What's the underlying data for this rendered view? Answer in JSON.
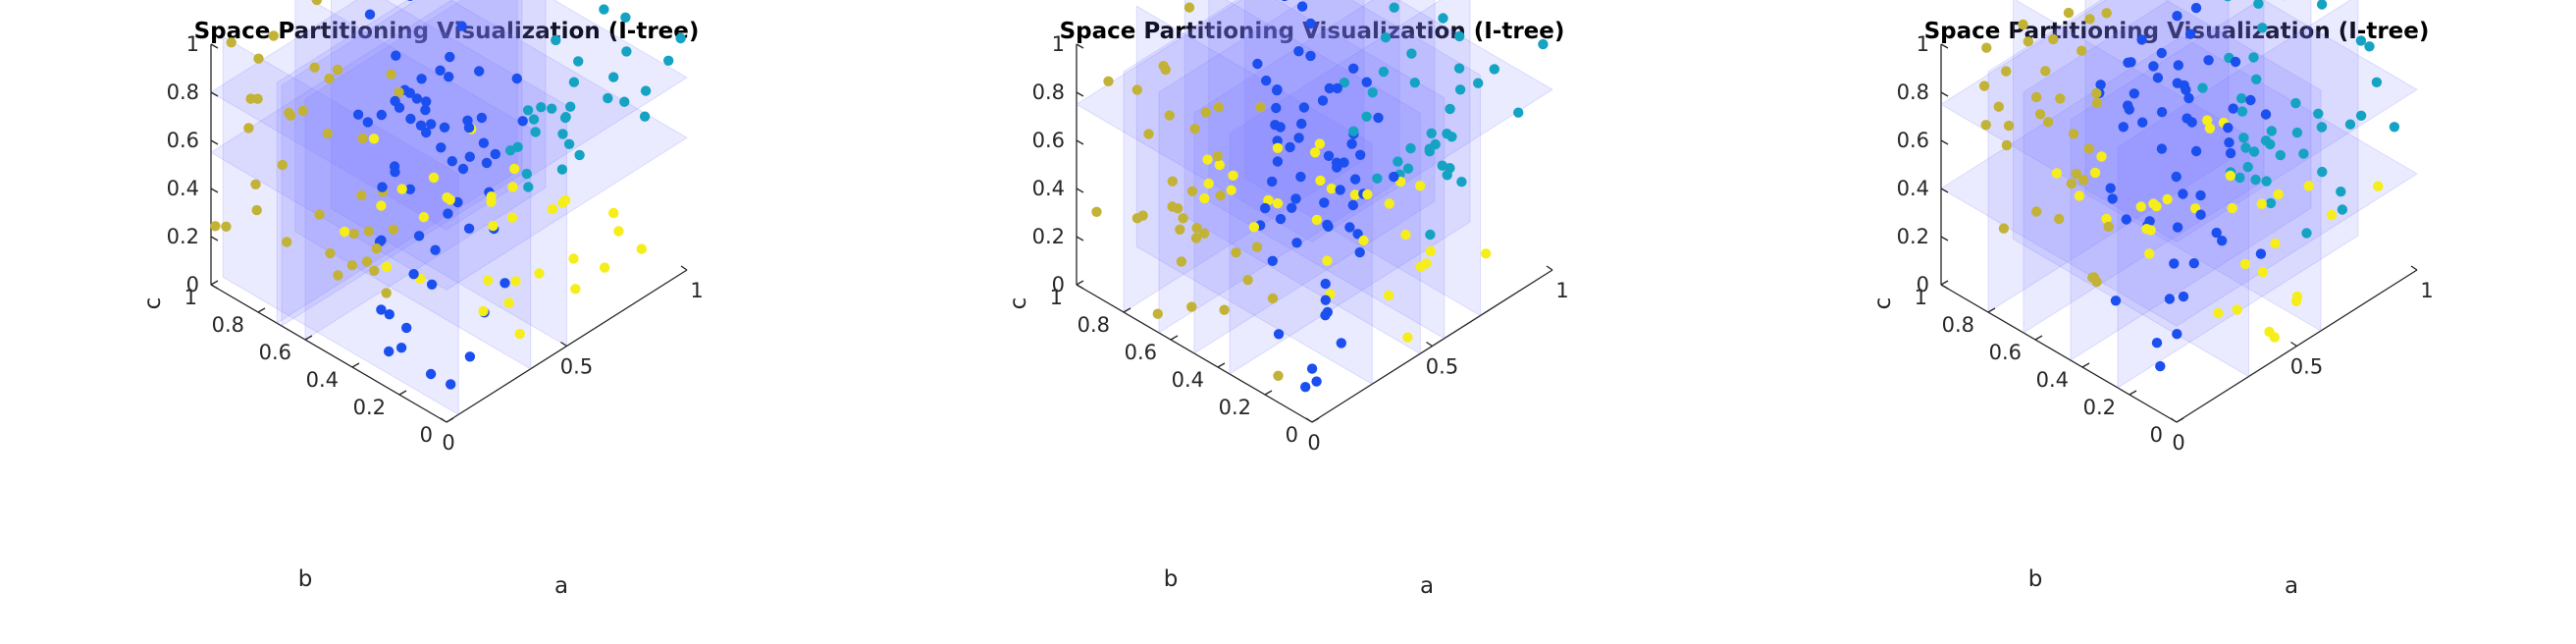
{
  "figure": {
    "background": "#ffffff",
    "plane_fill": "#7b7bff",
    "plane_fill_opacity": 0.15,
    "point_colors": [
      "#1b4ff0",
      "#14a3c2",
      "#c2b236",
      "#f5ee1a"
    ]
  },
  "chart_data": [
    {
      "type": "scatter3d",
      "title": "Space Partitioning Visualization (I-tree)",
      "xlabel": "a",
      "ylabel": "b",
      "zlabel": "c",
      "xlim": [
        0,
        1
      ],
      "ylim": [
        0,
        1
      ],
      "zlim": [
        0,
        1
      ],
      "x_ticks": [
        "0",
        "0.5",
        "1"
      ],
      "y_ticks": [
        "0",
        "0.2",
        "0.4",
        "0.6",
        "0.8",
        "1"
      ],
      "z_ticks": [
        "0",
        "0.2",
        "0.4",
        "0.6",
        "0.8",
        "1"
      ],
      "grid": false,
      "partitions": [
        {
          "axis": "c",
          "value": 0.55
        },
        {
          "axis": "c",
          "value": 0.8
        },
        {
          "axis": "a",
          "value": 0.05
        },
        {
          "axis": "a",
          "value": 0.35
        },
        {
          "axis": "a",
          "value": 0.5
        },
        {
          "axis": "b",
          "value": 0.6
        },
        {
          "axis": "b",
          "value": 0.7
        },
        {
          "axis": "b",
          "value": 0.72
        }
      ],
      "seed": 7
    },
    {
      "type": "scatter3d",
      "title": "Space Partitioning Visualization (I-tree)",
      "xlabel": "a",
      "ylabel": "b",
      "zlabel": "c",
      "xlim": [
        0,
        1
      ],
      "ylim": [
        0,
        1
      ],
      "zlim": [
        0,
        1
      ],
      "x_ticks": [
        "0",
        "0.5",
        "1"
      ],
      "y_ticks": [
        "0",
        "0.2",
        "0.4",
        "0.6",
        "0.8",
        "1"
      ],
      "z_ticks": [
        "0",
        "0.2",
        "0.4",
        "0.6",
        "0.8",
        "1"
      ],
      "grid": false,
      "partitions": [
        {
          "axis": "c",
          "value": 0.75
        },
        {
          "axis": "a",
          "value": 0.25
        },
        {
          "axis": "a",
          "value": 0.45
        },
        {
          "axis": "a",
          "value": 0.55
        },
        {
          "axis": "a",
          "value": 0.7
        },
        {
          "axis": "b",
          "value": 0.35
        },
        {
          "axis": "b",
          "value": 0.5
        },
        {
          "axis": "b",
          "value": 0.65
        },
        {
          "axis": "b",
          "value": 0.8
        }
      ],
      "seed": 21
    },
    {
      "type": "scatter3d",
      "title": "Space Partitioning Visualization (I-tree)",
      "xlabel": "a",
      "ylabel": "b",
      "zlabel": "c",
      "xlim": [
        0,
        1
      ],
      "ylim": [
        0,
        1
      ],
      "zlim": [
        0,
        1
      ],
      "x_ticks": [
        "0",
        "0.5",
        "1"
      ],
      "y_ticks": [
        "0",
        "0.2",
        "0.4",
        "0.6",
        "0.8",
        "1"
      ],
      "z_ticks": [
        "0",
        "0.2",
        "0.4",
        "0.6",
        "0.8",
        "1"
      ],
      "grid": false,
      "partitions": [
        {
          "axis": "c",
          "value": 0.4
        },
        {
          "axis": "c",
          "value": 0.75
        },
        {
          "axis": "a",
          "value": 0.3
        },
        {
          "axis": "a",
          "value": 0.6
        },
        {
          "axis": "b",
          "value": 0.25
        },
        {
          "axis": "b",
          "value": 0.45
        },
        {
          "axis": "b",
          "value": 0.65
        },
        {
          "axis": "b",
          "value": 0.8
        }
      ],
      "seed": 42
    }
  ]
}
